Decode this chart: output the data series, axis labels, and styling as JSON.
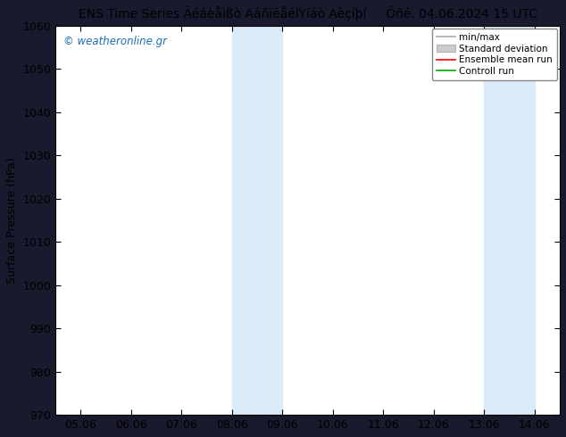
{
  "title_left": "ENS Time Series Äéáèåìßò ÁáñïëåéíÝíáò Áèçíþí",
  "title_right": "Ôñé. 04.06.2024 15 UTC",
  "ylabel": "Surface Pressure (hPa)",
  "ylim": [
    970,
    1060
  ],
  "yticks": [
    970,
    980,
    990,
    1000,
    1010,
    1020,
    1030,
    1040,
    1050,
    1060
  ],
  "xtick_labels": [
    "05.06",
    "06.06",
    "07.06",
    "08.06",
    "09.06",
    "10.06",
    "11.06",
    "12.06",
    "13.06",
    "14.06"
  ],
  "shade_bands": [
    {
      "xstart": 3,
      "xend": 4,
      "color": "#daeaf8"
    },
    {
      "xstart": 8,
      "xend": 9,
      "color": "#daeaf8"
    }
  ],
  "legend_labels": [
    "min/max",
    "Standard deviation",
    "Ensemble mean run",
    "Controll run"
  ],
  "legend_colors": [
    "#aaaaaa",
    "#cccccc",
    "#ff0000",
    "#00aa00"
  ],
  "watermark": "© weatheronline.gr",
  "fig_bg_color": "#1a1a2e",
  "plot_bg_color": "#ffffff",
  "title_color": "#000000",
  "watermark_color": "#1a6eb5",
  "tick_fontsize": 9,
  "label_fontsize": 9,
  "title_fontsize": 10
}
